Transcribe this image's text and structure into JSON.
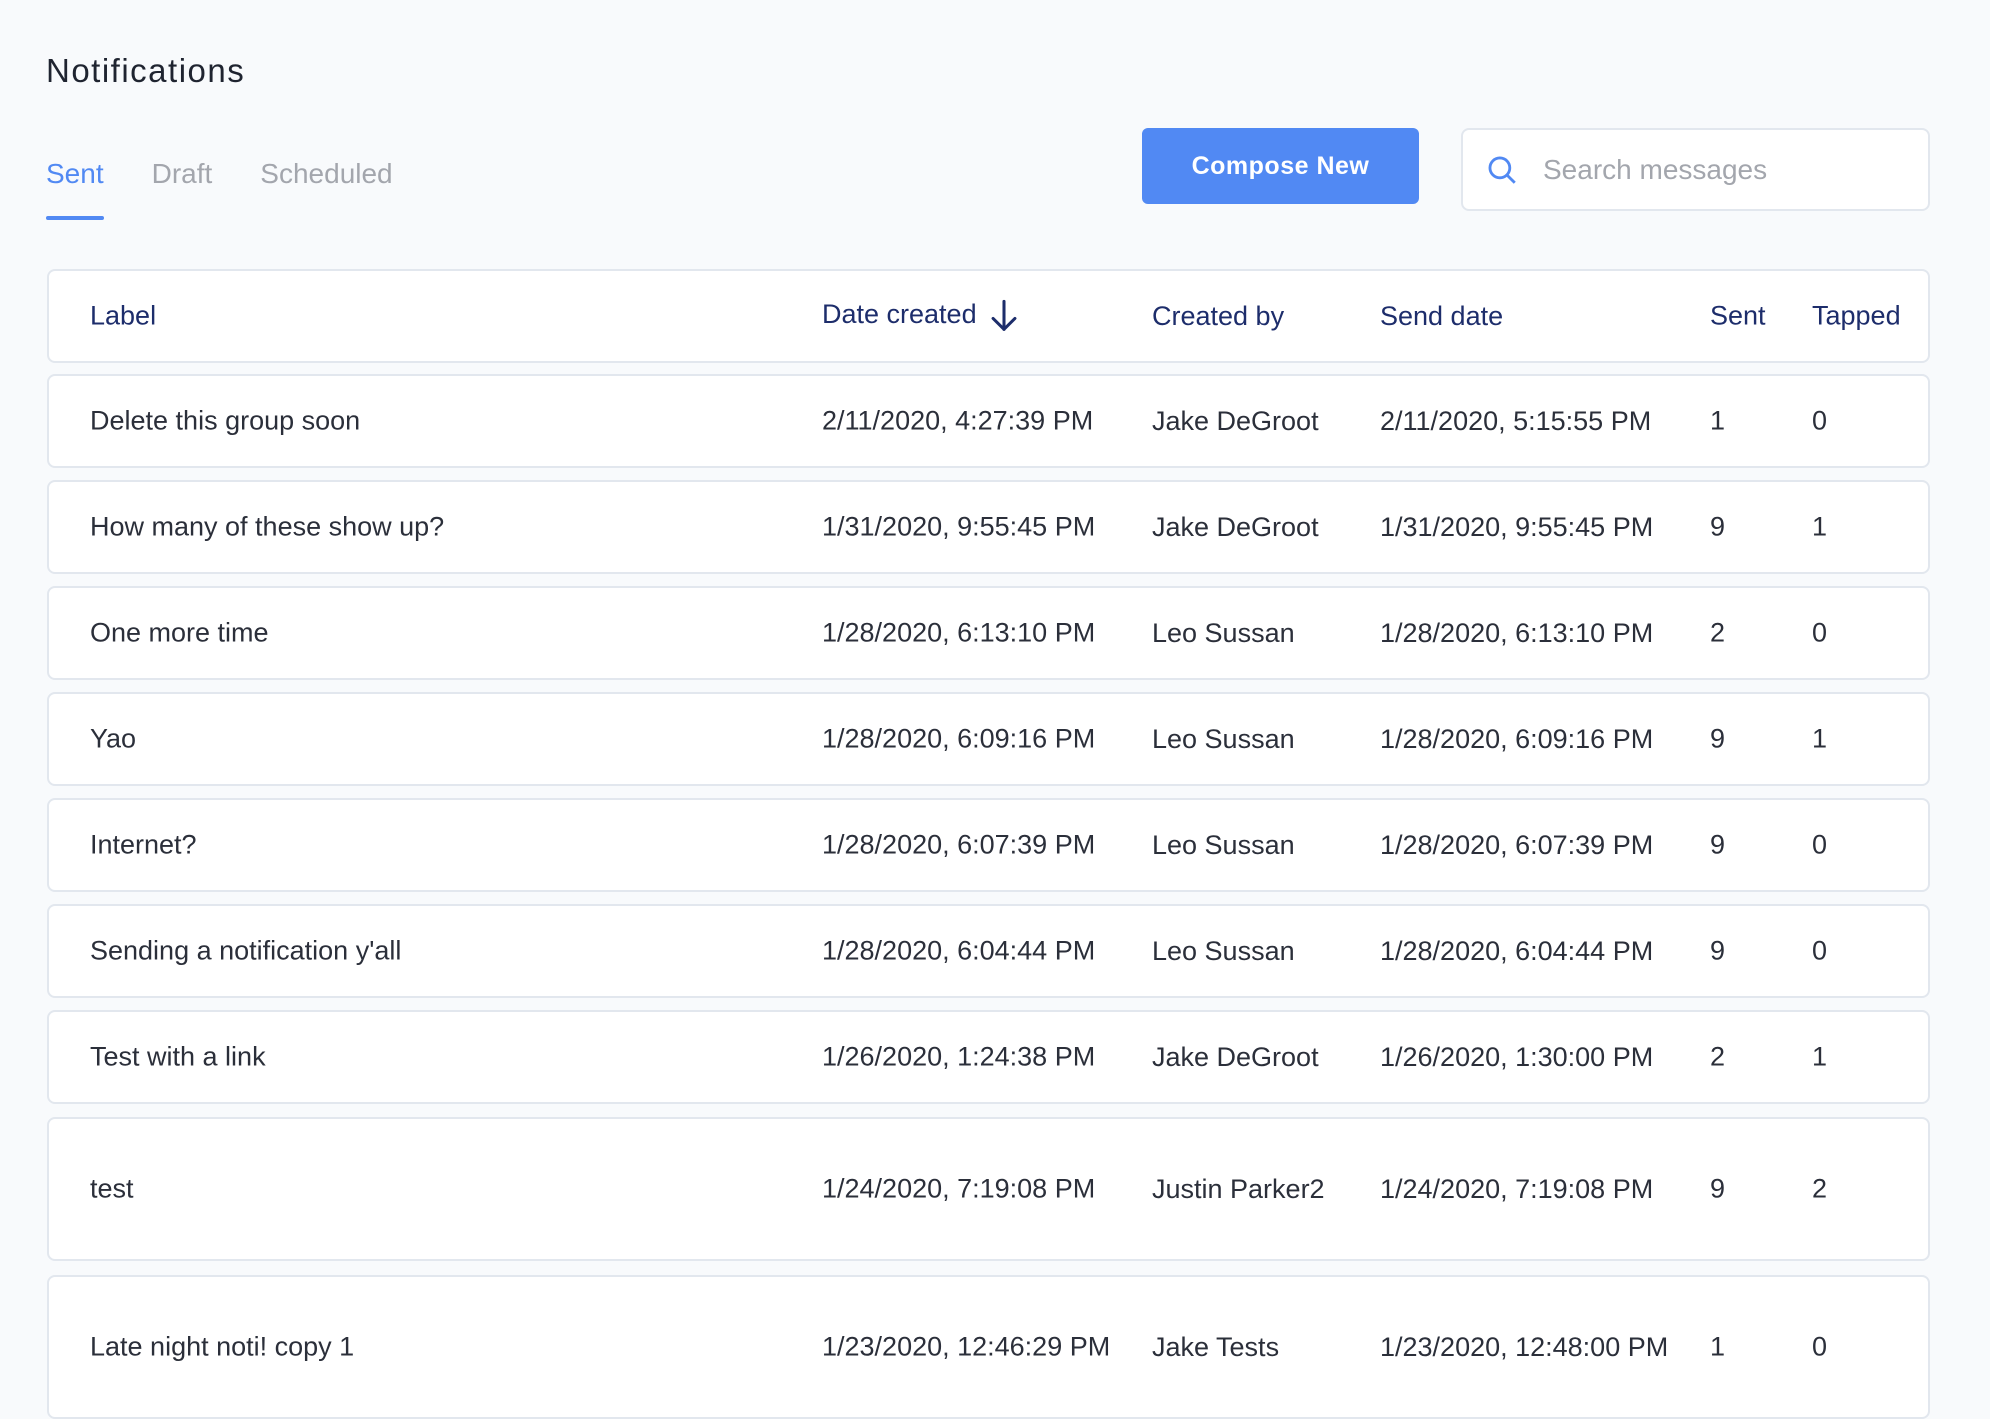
{
  "page": {
    "title": "Notifications"
  },
  "tabs": [
    {
      "label": "Sent",
      "active": true
    },
    {
      "label": "Draft",
      "active": false
    },
    {
      "label": "Scheduled",
      "active": false
    }
  ],
  "toolbar": {
    "compose_label": "Compose New",
    "search_placeholder": "Search messages",
    "search_value": ""
  },
  "colors": {
    "accent": "#5189f3",
    "header_text": "#1d2d6b",
    "body_text": "#2b2f3a"
  },
  "table": {
    "columns": [
      "Label",
      "Date created",
      "Created by",
      "Send date",
      "Sent",
      "Tapped"
    ],
    "sort": {
      "column": "Date created",
      "direction": "descending",
      "icon": "arrow-down-icon"
    },
    "rows": [
      {
        "label": "Delete this group soon",
        "date_created": "2/11/2020, 4:27:39 PM",
        "created_by": "Jake DeGroot",
        "send_date": "2/11/2020, 5:15:55 PM",
        "sent": "1",
        "tapped": "0"
      },
      {
        "label": "How many of these show up?",
        "date_created": "1/31/2020, 9:55:45 PM",
        "created_by": "Jake DeGroot",
        "send_date": "1/31/2020, 9:55:45 PM",
        "sent": "9",
        "tapped": "1"
      },
      {
        "label": "One more time",
        "date_created": "1/28/2020, 6:13:10 PM",
        "created_by": "Leo Sussan",
        "send_date": "1/28/2020, 6:13:10 PM",
        "sent": "2",
        "tapped": "0"
      },
      {
        "label": "Yao",
        "date_created": "1/28/2020, 6:09:16 PM",
        "created_by": "Leo Sussan",
        "send_date": "1/28/2020, 6:09:16 PM",
        "sent": "9",
        "tapped": "1"
      },
      {
        "label": "Internet?",
        "date_created": "1/28/2020, 6:07:39 PM",
        "created_by": "Leo Sussan",
        "send_date": "1/28/2020, 6:07:39 PM",
        "sent": "9",
        "tapped": "0"
      },
      {
        "label": "Sending a notification y'all",
        "date_created": "1/28/2020, 6:04:44 PM",
        "created_by": "Leo Sussan",
        "send_date": "1/28/2020, 6:04:44 PM",
        "sent": "9",
        "tapped": "0"
      },
      {
        "label": "Test with a link",
        "date_created": "1/26/2020, 1:24:38 PM",
        "created_by": "Jake DeGroot",
        "send_date": "1/26/2020, 1:30:00 PM",
        "sent": "2",
        "tapped": "1"
      },
      {
        "label": "test",
        "date_created": "1/24/2020, 7:19:08 PM",
        "created_by": "Justin Parker2",
        "send_date": "1/24/2020, 7:19:08 PM",
        "sent": "9",
        "tapped": "2"
      },
      {
        "label": "Late night noti! copy 1",
        "date_created": "1/23/2020, 12:46:29 PM",
        "created_by": "Jake Tests",
        "send_date": "1/23/2020, 12:48:00 PM",
        "sent": "1",
        "tapped": "0"
      }
    ]
  }
}
